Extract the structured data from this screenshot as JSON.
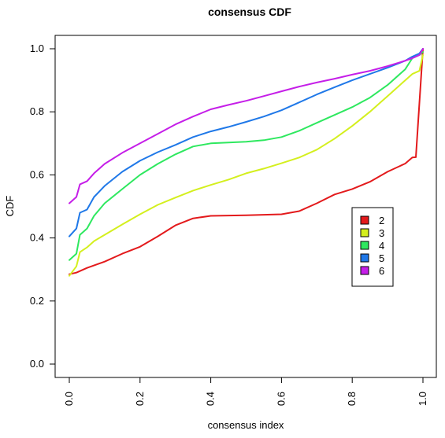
{
  "chart_data": {
    "type": "line",
    "title": "consensus CDF",
    "xlabel": "consensus index",
    "ylabel": "CDF",
    "xlim": [
      0,
      1
    ],
    "ylim": [
      0,
      1
    ],
    "xticks": [
      0.0,
      0.2,
      0.4,
      0.6,
      0.8,
      1.0
    ],
    "xtick_labels": [
      "0.0",
      "0.2",
      "0.4",
      "0.6",
      "0.8",
      "1.0"
    ],
    "yticks": [
      0.0,
      0.2,
      0.4,
      0.6,
      0.8,
      1.0
    ],
    "ytick_labels": [
      "0.0",
      "0.2",
      "0.4",
      "0.6",
      "0.8",
      "1.0"
    ],
    "grid": false,
    "legend_position": "right-middle",
    "series": [
      {
        "name": "2",
        "color": "#e31a1c",
        "points": [
          [
            0.0,
            0.285
          ],
          [
            0.02,
            0.29
          ],
          [
            0.05,
            0.305
          ],
          [
            0.1,
            0.325
          ],
          [
            0.15,
            0.35
          ],
          [
            0.2,
            0.372
          ],
          [
            0.25,
            0.405
          ],
          [
            0.3,
            0.44
          ],
          [
            0.35,
            0.462
          ],
          [
            0.4,
            0.47
          ],
          [
            0.5,
            0.472
          ],
          [
            0.6,
            0.475
          ],
          [
            0.65,
            0.485
          ],
          [
            0.7,
            0.51
          ],
          [
            0.75,
            0.538
          ],
          [
            0.8,
            0.555
          ],
          [
            0.85,
            0.578
          ],
          [
            0.9,
            0.61
          ],
          [
            0.95,
            0.636
          ],
          [
            0.97,
            0.655
          ],
          [
            0.98,
            0.656
          ],
          [
            1.0,
            1.0
          ]
        ]
      },
      {
        "name": "3",
        "color": "#d4ef1e",
        "points": [
          [
            0.0,
            0.28
          ],
          [
            0.02,
            0.31
          ],
          [
            0.03,
            0.355
          ],
          [
            0.05,
            0.37
          ],
          [
            0.07,
            0.39
          ],
          [
            0.1,
            0.41
          ],
          [
            0.15,
            0.443
          ],
          [
            0.2,
            0.475
          ],
          [
            0.25,
            0.505
          ],
          [
            0.3,
            0.528
          ],
          [
            0.35,
            0.55
          ],
          [
            0.4,
            0.568
          ],
          [
            0.45,
            0.585
          ],
          [
            0.5,
            0.605
          ],
          [
            0.55,
            0.62
          ],
          [
            0.6,
            0.637
          ],
          [
            0.65,
            0.655
          ],
          [
            0.7,
            0.68
          ],
          [
            0.75,
            0.715
          ],
          [
            0.8,
            0.755
          ],
          [
            0.85,
            0.8
          ],
          [
            0.9,
            0.85
          ],
          [
            0.95,
            0.9
          ],
          [
            0.97,
            0.92
          ],
          [
            0.99,
            0.93
          ],
          [
            1.0,
            0.98
          ]
        ]
      },
      {
        "name": "4",
        "color": "#2ee85f",
        "points": [
          [
            0.0,
            0.33
          ],
          [
            0.02,
            0.35
          ],
          [
            0.03,
            0.41
          ],
          [
            0.05,
            0.43
          ],
          [
            0.07,
            0.47
          ],
          [
            0.1,
            0.51
          ],
          [
            0.15,
            0.555
          ],
          [
            0.2,
            0.6
          ],
          [
            0.25,
            0.635
          ],
          [
            0.3,
            0.665
          ],
          [
            0.35,
            0.69
          ],
          [
            0.4,
            0.7
          ],
          [
            0.5,
            0.705
          ],
          [
            0.55,
            0.71
          ],
          [
            0.6,
            0.72
          ],
          [
            0.65,
            0.74
          ],
          [
            0.7,
            0.765
          ],
          [
            0.75,
            0.79
          ],
          [
            0.8,
            0.815
          ],
          [
            0.85,
            0.845
          ],
          [
            0.9,
            0.885
          ],
          [
            0.95,
            0.935
          ],
          [
            0.97,
            0.97
          ],
          [
            0.99,
            0.98
          ],
          [
            1.0,
            0.99
          ]
        ]
      },
      {
        "name": "5",
        "color": "#1f78e8",
        "points": [
          [
            0.0,
            0.405
          ],
          [
            0.02,
            0.43
          ],
          [
            0.03,
            0.48
          ],
          [
            0.05,
            0.49
          ],
          [
            0.07,
            0.53
          ],
          [
            0.1,
            0.565
          ],
          [
            0.15,
            0.61
          ],
          [
            0.2,
            0.645
          ],
          [
            0.25,
            0.672
          ],
          [
            0.3,
            0.695
          ],
          [
            0.35,
            0.72
          ],
          [
            0.4,
            0.738
          ],
          [
            0.45,
            0.752
          ],
          [
            0.5,
            0.768
          ],
          [
            0.55,
            0.785
          ],
          [
            0.6,
            0.805
          ],
          [
            0.65,
            0.83
          ],
          [
            0.7,
            0.855
          ],
          [
            0.75,
            0.878
          ],
          [
            0.8,
            0.9
          ],
          [
            0.85,
            0.92
          ],
          [
            0.9,
            0.94
          ],
          [
            0.95,
            0.962
          ],
          [
            0.97,
            0.975
          ],
          [
            0.99,
            0.985
          ],
          [
            1.0,
            1.0
          ]
        ]
      },
      {
        "name": "6",
        "color": "#c51ee8",
        "points": [
          [
            0.0,
            0.51
          ],
          [
            0.02,
            0.53
          ],
          [
            0.03,
            0.57
          ],
          [
            0.05,
            0.58
          ],
          [
            0.07,
            0.605
          ],
          [
            0.1,
            0.635
          ],
          [
            0.15,
            0.67
          ],
          [
            0.2,
            0.7
          ],
          [
            0.25,
            0.73
          ],
          [
            0.3,
            0.76
          ],
          [
            0.35,
            0.785
          ],
          [
            0.4,
            0.808
          ],
          [
            0.45,
            0.822
          ],
          [
            0.5,
            0.835
          ],
          [
            0.55,
            0.85
          ],
          [
            0.6,
            0.865
          ],
          [
            0.65,
            0.88
          ],
          [
            0.7,
            0.893
          ],
          [
            0.75,
            0.905
          ],
          [
            0.8,
            0.918
          ],
          [
            0.85,
            0.93
          ],
          [
            0.9,
            0.945
          ],
          [
            0.95,
            0.962
          ],
          [
            0.97,
            0.97
          ],
          [
            0.99,
            0.98
          ],
          [
            1.0,
            1.0
          ]
        ]
      }
    ]
  }
}
